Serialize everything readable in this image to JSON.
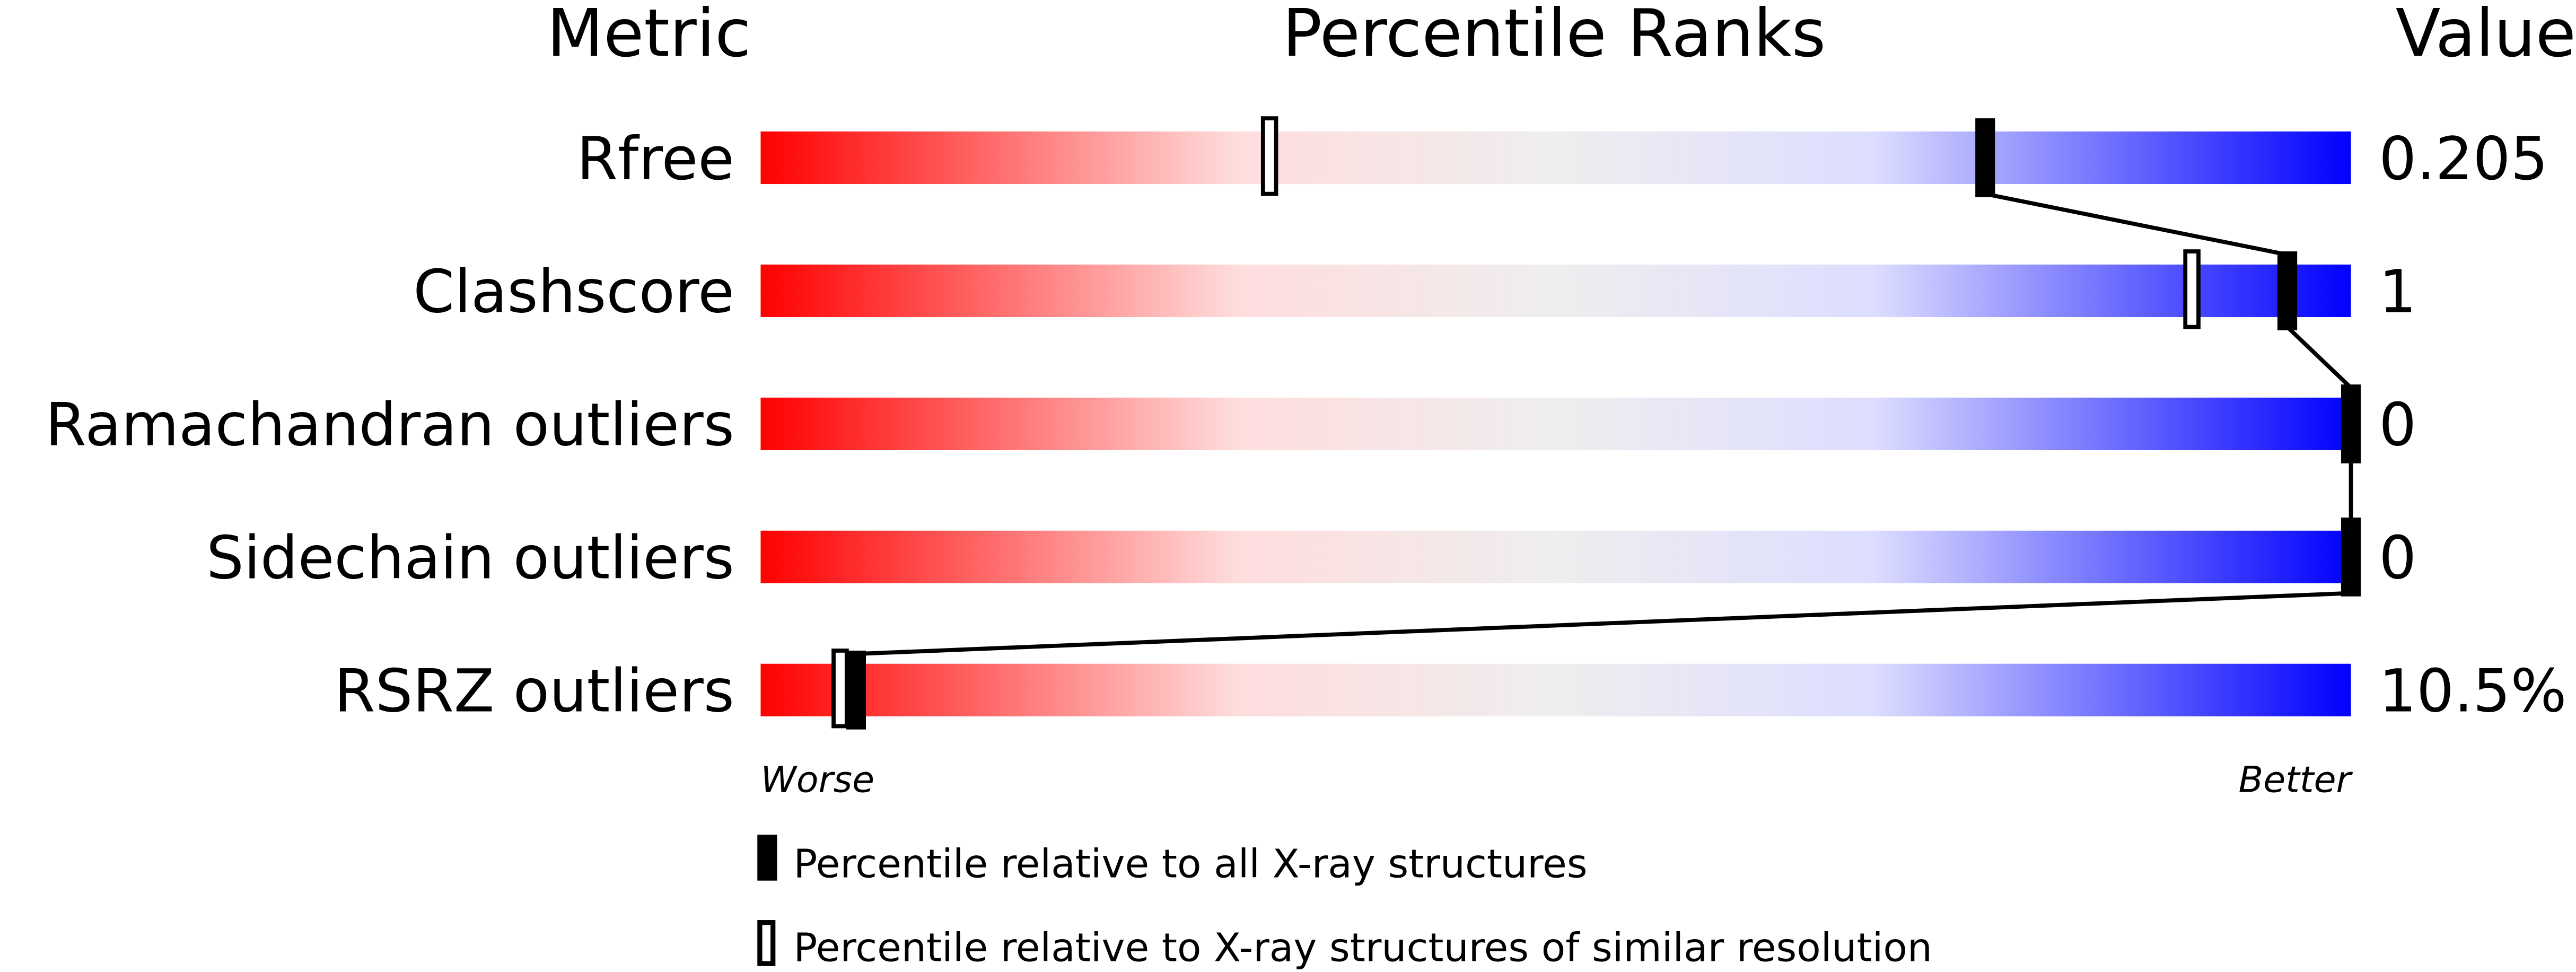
{
  "chart_data": {
    "type": "percentile-slider",
    "headers": {
      "metric": "Metric",
      "ranks": "Percentile Ranks",
      "value": "Value"
    },
    "xlim": [
      0,
      100
    ],
    "axis_labels": {
      "left": "Worse",
      "right": "Better"
    },
    "colors": {
      "worse": "#ff0000",
      "middle": "#eeeeee",
      "better": "#0000ff"
    },
    "rows": [
      {
        "metric": "Rfree",
        "value": "0.205",
        "percentile_all": 77,
        "percentile_similar": 32
      },
      {
        "metric": "Clashscore",
        "value": "1",
        "percentile_all": 96,
        "percentile_similar": 90
      },
      {
        "metric": "Ramachandran outliers",
        "value": "0",
        "percentile_all": 100,
        "percentile_similar": null
      },
      {
        "metric": "Sidechain outliers",
        "value": "0",
        "percentile_all": 100,
        "percentile_similar": null
      },
      {
        "metric": "RSRZ outliers",
        "value": "10.5%",
        "percentile_all": 6,
        "percentile_similar": 5
      }
    ],
    "legend": [
      {
        "marker": "filled",
        "label": "Percentile relative to all X-ray structures"
      },
      {
        "marker": "open",
        "label": "Percentile relative to X-ray structures of similar resolution"
      }
    ]
  }
}
